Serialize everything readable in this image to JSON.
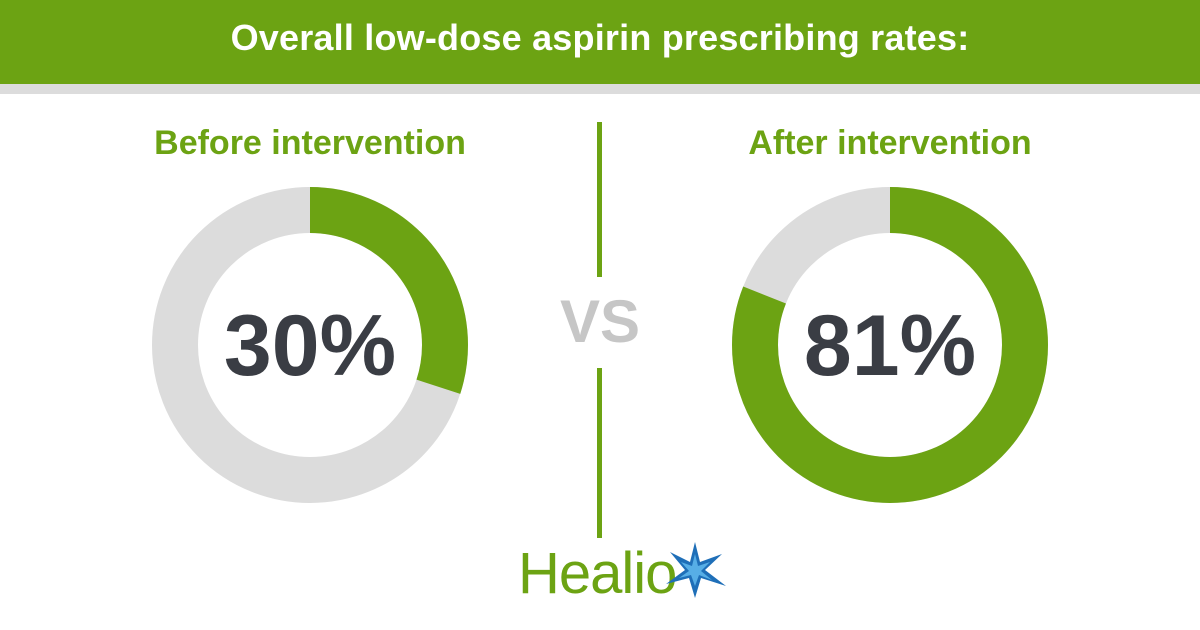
{
  "header": {
    "title": "Overall low-dose aspirin prescribing rates:"
  },
  "vs_label": "VS",
  "logo": {
    "text": "Healio"
  },
  "colors": {
    "accent": "#6ca313",
    "track": "#dcdcdc",
    "value_text": "#3a3d44",
    "vs_text": "#c6c6c6"
  },
  "chart_data": [
    {
      "type": "pie",
      "subtype": "donut",
      "title": "Before intervention",
      "value": 30,
      "value_label": "30%",
      "max": 100,
      "unit": "%"
    },
    {
      "type": "pie",
      "subtype": "donut",
      "title": "After intervention",
      "value": 81,
      "value_label": "81%",
      "max": 100,
      "unit": "%"
    }
  ]
}
